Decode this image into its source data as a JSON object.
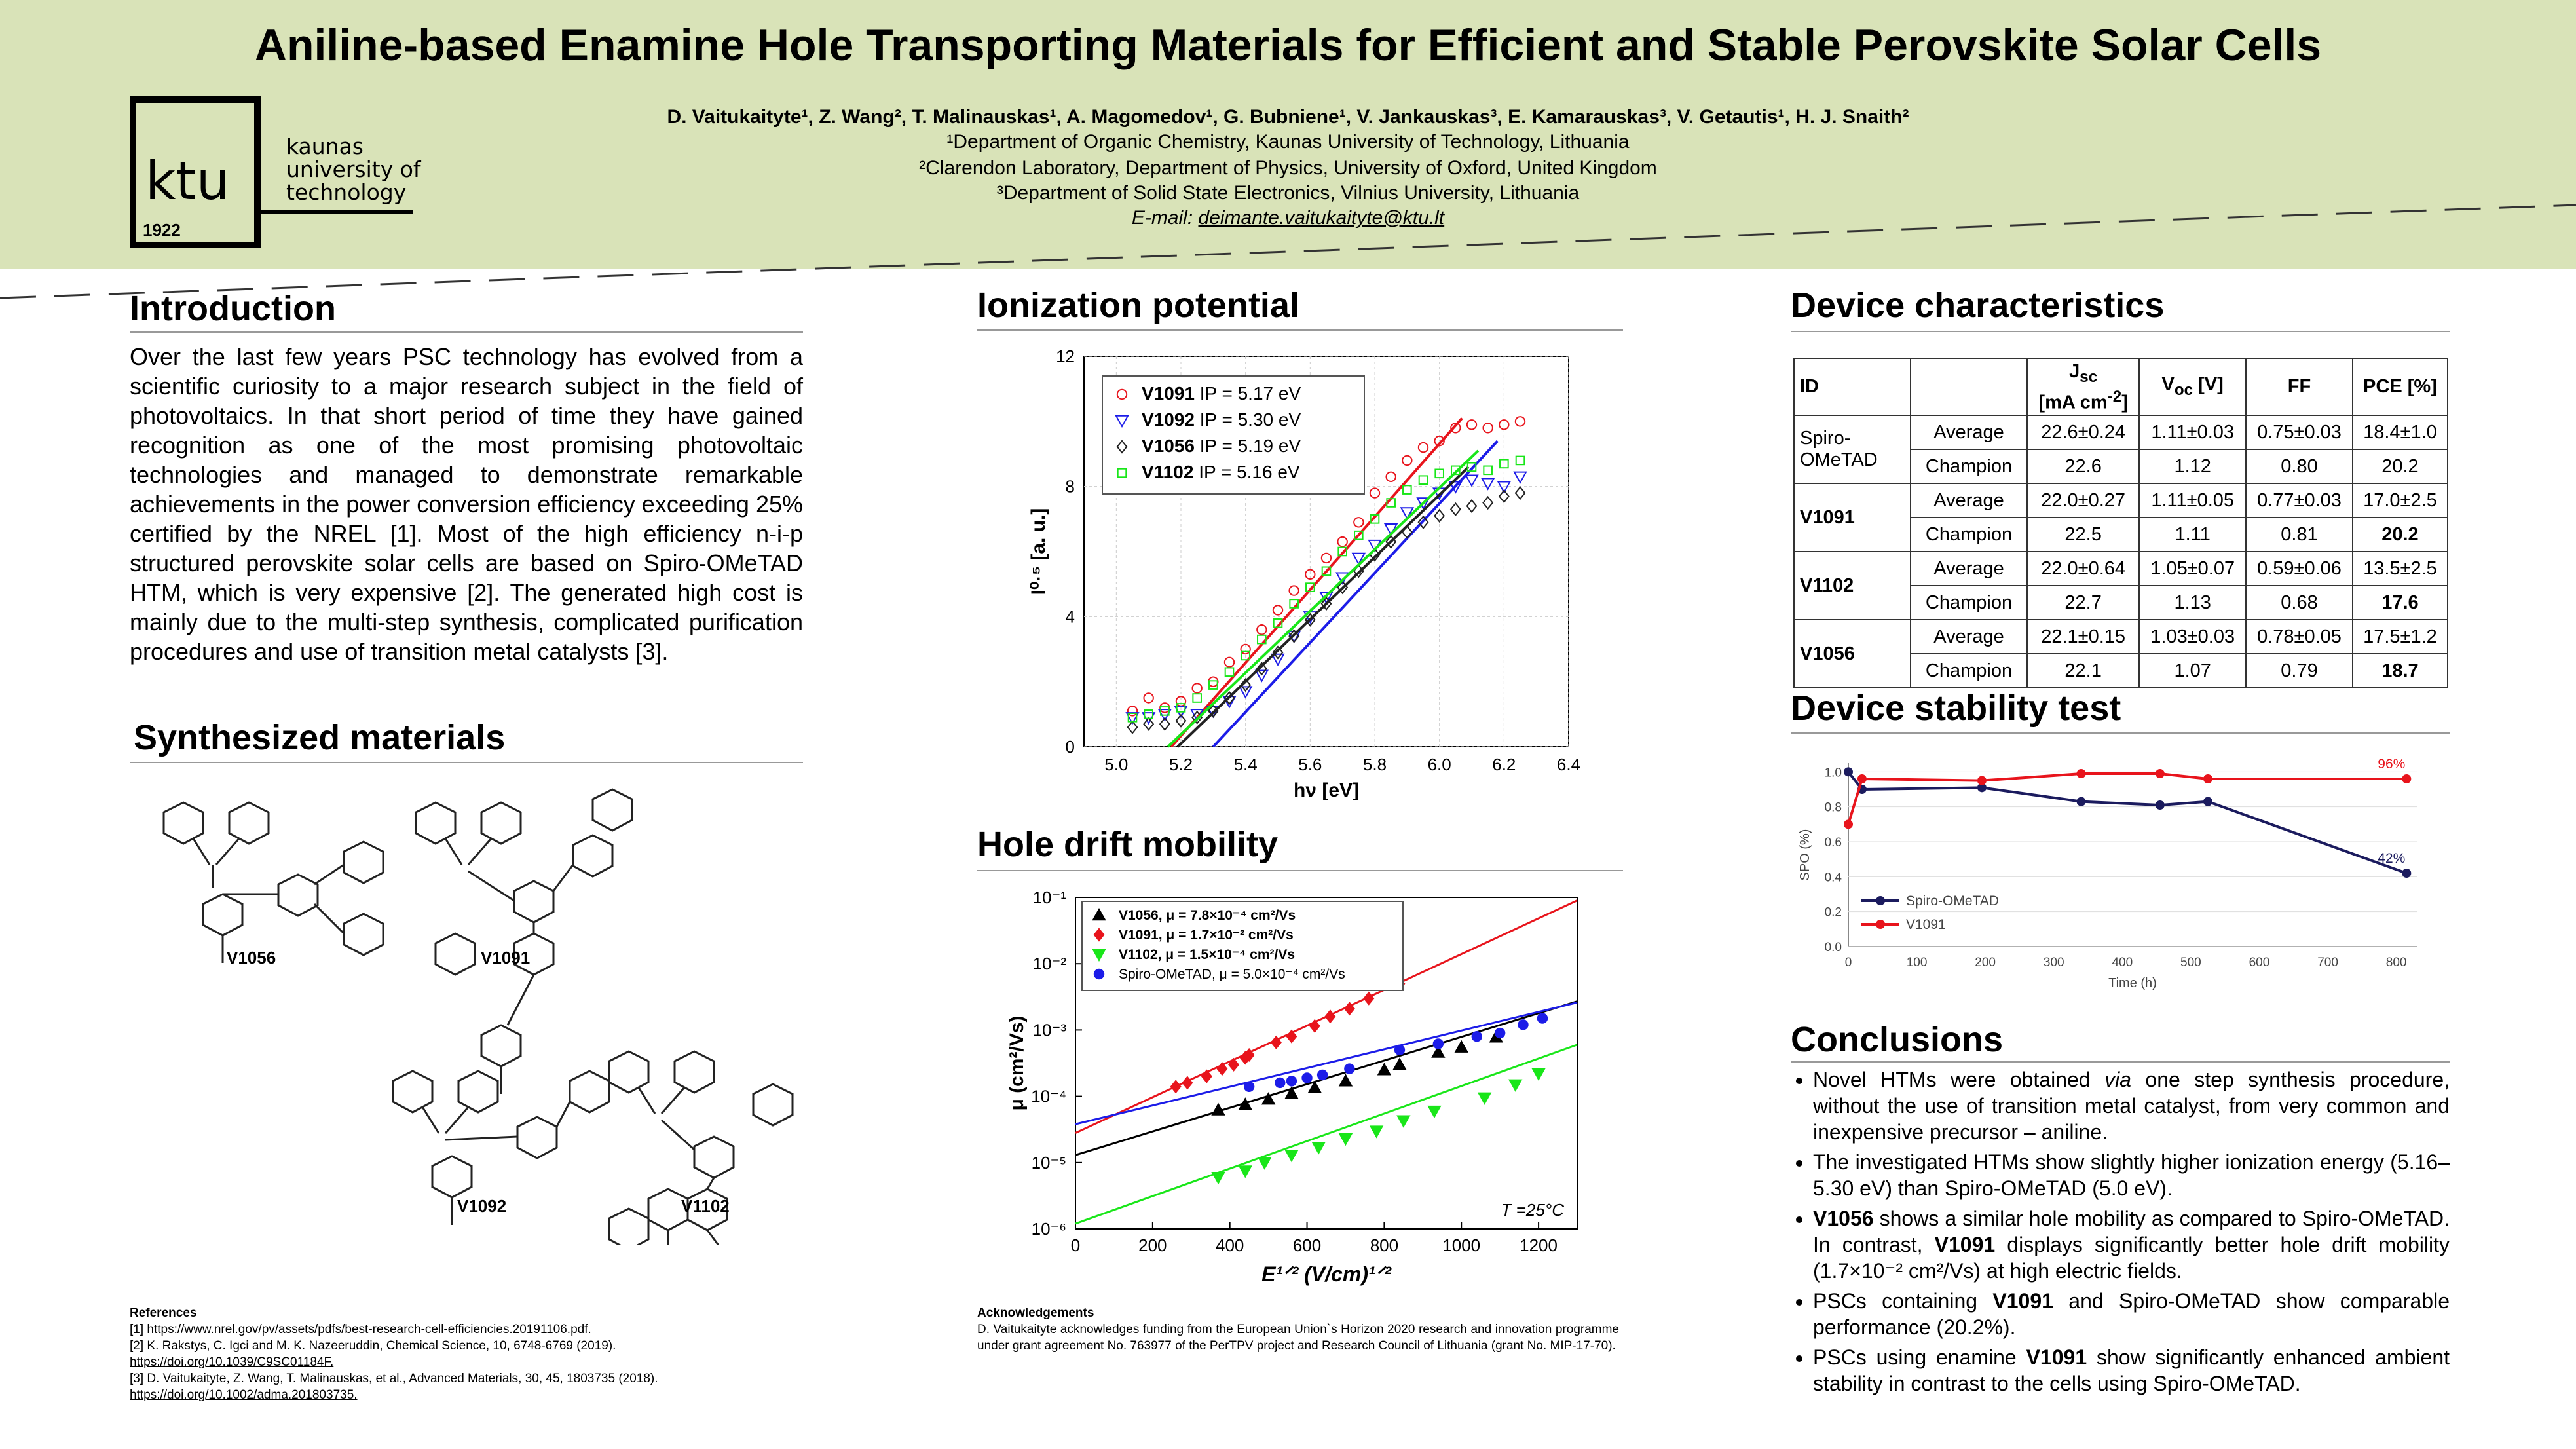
{
  "title": "Aniline-based Enamine Hole Transporting Materials for Efficient and Stable Perovskite Solar Cells",
  "authors": "D. Vaitukaityte¹, Z. Wang², T. Malinauskas¹, A. Magomedov¹, G. Bubniene¹, V. Jankauskas³, E. Kamarauskas³, V. Getautis¹, H. J. Snaith²",
  "affiliations": [
    "¹Department of Organic Chemistry, Kaunas University of Technology, Lithuania",
    "²Clarendon Laboratory, Department of Physics, University of Oxford, United Kingdom",
    "³Department of Solid State Electronics, Vilnius University, Lithuania"
  ],
  "email_label": "E-mail: ",
  "email": "deimante.vaitukaityte@ktu.lt",
  "logo": {
    "short": "ktu",
    "year": "1922",
    "line1": "kaunas",
    "line2": "university of",
    "line3": "technology"
  },
  "introduction": {
    "heading": "Introduction",
    "text": "Over the last few years PSC technology has evolved from a scientific curiosity to a major research subject in the field of photovoltaics. In that short period of time they have gained recognition as one of the most promising photovoltaic technologies and managed to demonstrate remarkable achievements in the power conversion efficiency exceeding 25% certified by the NREL [1]. Most of the high efficiency n-i-p structured perovskite solar cells are based on Spiro-OMeTAD HTM, which is very expensive [2]. The generated high cost is mainly due to the multi-step synthesis, complicated purification procedures and use of transition metal catalysts [3]."
  },
  "synthesized": {
    "heading": "Synthesized materials",
    "labels": [
      "V1056",
      "V1091",
      "V1092",
      "V1102"
    ]
  },
  "references": {
    "heading": "References",
    "items": [
      "[1] https://www.nrel.gov/pv/assets/pdfs/best-research-cell-efficiencies.20191106.pdf.",
      "[2] K. Rakstys, C. Igci and M. K. Nazeeruddin, Chemical Science, 10, 6748-6769 (2019).",
      "https://doi.org/10.1039/C9SC01184F.",
      "[3] D. Vaitukaityte, Z. Wang, T. Malinauskas, et al., Advanced Materials, 30, 45, 1803735 (2018).",
      "https://doi.org/10.1002/adma.201803735."
    ]
  },
  "acknowledgements": {
    "heading": "Acknowledgements",
    "text": "D. Vaitukaityte acknowledges funding from the European Union`s Horizon 2020 research and innovation programme under grant agreement No. 763977 of the PerTPV project and Research Council of Lithuania (grant No. MIP-17-70)."
  },
  "ionization": {
    "heading": "Ionization potential"
  },
  "mobility": {
    "heading": "Hole drift mobility"
  },
  "device": {
    "heading": "Device characteristics",
    "header": [
      "ID",
      "",
      "J_sc [mA cm⁻²]",
      "V_oc [V]",
      "FF",
      "PCE [%]"
    ],
    "groups": [
      {
        "id": "Spiro-OMeTAD",
        "rows": [
          [
            "Average",
            "22.6±0.24",
            "1.11±0.03",
            "0.75±0.03",
            "18.4±1.0"
          ],
          [
            "Champion",
            "22.6",
            "1.12",
            "0.80",
            "20.2"
          ]
        ]
      },
      {
        "id": "V1091",
        "rows": [
          [
            "Average",
            "22.0±0.27",
            "1.11±0.05",
            "0.77±0.03",
            "17.0±2.5"
          ],
          [
            "Champion",
            "22.5",
            "1.11",
            "0.81",
            "20.2"
          ]
        ]
      },
      {
        "id": "V1102",
        "rows": [
          [
            "Average",
            "22.0±0.64",
            "1.05±0.07",
            "0.59±0.06",
            "13.5±2.5"
          ],
          [
            "Champion",
            "22.7",
            "1.13",
            "0.68",
            "17.6"
          ]
        ]
      },
      {
        "id": "V1056",
        "rows": [
          [
            "Average",
            "22.1±0.15",
            "1.03±0.03",
            "0.78±0.05",
            "17.5±1.2"
          ],
          [
            "Champion",
            "22.1",
            "1.07",
            "0.79",
            "18.7"
          ]
        ]
      }
    ]
  },
  "stability": {
    "heading": "Device stability test"
  },
  "conclusions": {
    "heading": "Conclusions",
    "items": [
      [
        "Novel HTMs were obtained ",
        "via",
        " one step synthesis procedure, without the use of transition metal catalyst, from very common and inexpensive precursor – aniline."
      ],
      [
        "The investigated HTMs show slightly higher ionization energy (5.16–5.30 eV) than Spiro-OMeTAD (5.0 eV)."
      ],
      [
        "V1056",
        " shows a similar hole mobility as compared to Spiro-OMeTAD. In contrast, ",
        "V1091",
        " displays significantly better hole drift mobility (1.7×10⁻² cm²/Vs) at high electric fields."
      ],
      [
        "PSCs containing ",
        "V1091",
        " and Spiro-OMeTAD show comparable performance (20.2%)."
      ],
      [
        "PSCs using enamine ",
        "V1091",
        " show significantly enhanced ambient stability in contrast to the cells using Spiro-OMeTAD."
      ]
    ]
  },
  "chart_data": [
    {
      "type": "scatter",
      "xlabel": "hν [eV]",
      "ylabel": "I⁰·⁵ [a. u.]",
      "xlim": [
        4.9,
        6.4
      ],
      "ylim": [
        0,
        12
      ],
      "xticks": [
        "5.0",
        "5.2",
        "5.4",
        "5.6",
        "5.8",
        "6.0",
        "6.2",
        "6.4"
      ],
      "yticks": [
        "0",
        "4",
        "8",
        "12"
      ],
      "legend_position": "top-left",
      "series": [
        {
          "name": "V1091",
          "label": "IP = 5.17 eV",
          "color": "#e8141c",
          "marker": "circle",
          "ip": 5.17,
          "fit_end": [
            6.07,
            10.1
          ],
          "x": [
            5.05,
            5.1,
            5.15,
            5.2,
            5.25,
            5.3,
            5.35,
            5.4,
            5.45,
            5.5,
            5.55,
            5.6,
            5.65,
            5.7,
            5.75,
            5.8,
            5.85,
            5.9,
            5.95,
            6.0,
            6.05,
            6.1,
            6.15,
            6.2,
            6.25
          ],
          "y": [
            1.1,
            1.5,
            1.2,
            1.4,
            1.8,
            2.0,
            2.6,
            3.0,
            3.6,
            4.2,
            4.8,
            5.3,
            5.8,
            6.3,
            6.9,
            7.8,
            8.3,
            8.8,
            9.2,
            9.4,
            9.8,
            9.9,
            9.8,
            9.9,
            10.0
          ]
        },
        {
          "name": "V1092",
          "label": "IP = 5.30 eV",
          "color": "#1c1ce8",
          "marker": "triangle-down",
          "ip": 5.3,
          "fit_end": [
            6.18,
            9.4
          ],
          "x": [
            5.05,
            5.1,
            5.15,
            5.2,
            5.25,
            5.3,
            5.35,
            5.4,
            5.45,
            5.5,
            5.55,
            5.6,
            5.65,
            5.7,
            5.75,
            5.8,
            5.85,
            5.9,
            5.95,
            6.0,
            6.05,
            6.1,
            6.15,
            6.2,
            6.25
          ],
          "y": [
            0.9,
            0.9,
            1.0,
            1.1,
            1.0,
            1.1,
            1.4,
            1.7,
            2.2,
            2.7,
            3.4,
            4.0,
            4.6,
            5.2,
            5.8,
            6.2,
            6.7,
            7.2,
            7.5,
            7.8,
            8.0,
            8.2,
            8.1,
            8.0,
            8.3
          ]
        },
        {
          "name": "V1056",
          "label": "IP = 5.19 eV",
          "color": "#222222",
          "marker": "diamond",
          "ip": 5.19,
          "fit_end": [
            6.09,
            8.6
          ],
          "x": [
            5.05,
            5.1,
            5.15,
            5.2,
            5.25,
            5.3,
            5.35,
            5.4,
            5.45,
            5.5,
            5.55,
            5.6,
            5.65,
            5.7,
            5.75,
            5.8,
            5.85,
            5.9,
            5.95,
            6.0,
            6.05,
            6.1,
            6.15,
            6.2,
            6.25
          ],
          "y": [
            0.6,
            0.7,
            0.7,
            0.8,
            0.9,
            1.1,
            1.5,
            1.9,
            2.4,
            2.9,
            3.4,
            3.9,
            4.4,
            4.9,
            5.4,
            5.9,
            6.3,
            6.6,
            6.9,
            7.1,
            7.3,
            7.4,
            7.5,
            7.7,
            7.8
          ]
        },
        {
          "name": "V1102",
          "label": "IP = 5.16 eV",
          "color": "#19e619",
          "marker": "square",
          "ip": 5.16,
          "fit_end": [
            6.12,
            9.1
          ],
          "x": [
            5.05,
            5.1,
            5.15,
            5.2,
            5.25,
            5.3,
            5.35,
            5.4,
            5.45,
            5.5,
            5.55,
            5.6,
            5.65,
            5.7,
            5.75,
            5.8,
            5.85,
            5.9,
            5.95,
            6.0,
            6.05,
            6.1,
            6.15,
            6.2,
            6.25
          ],
          "y": [
            0.9,
            1.0,
            1.1,
            1.2,
            1.5,
            1.9,
            2.3,
            2.8,
            3.3,
            3.8,
            4.4,
            4.9,
            5.4,
            6.0,
            6.5,
            7.0,
            7.5,
            7.9,
            8.2,
            8.4,
            8.5,
            8.6,
            8.5,
            8.7,
            8.8
          ]
        }
      ]
    },
    {
      "type": "scatter",
      "xlabel": "E¹ᐟ² (V/cm)¹ᐟ²",
      "ylabel": "μ (cm²/Vs)",
      "xlim": [
        0,
        1300
      ],
      "ylim": [
        1e-06,
        0.1
      ],
      "yscale": "log",
      "xticks": [
        "0",
        "200",
        "400",
        "600",
        "800",
        "1000",
        "1200"
      ],
      "yticks": [
        "10⁻⁶",
        "10⁻⁵",
        "10⁻⁴",
        "10⁻³",
        "10⁻²",
        "10⁻¹"
      ],
      "annotation": "T =25°C",
      "legend_position": "top-left",
      "series": [
        {
          "name": "V1056",
          "label": "V1056, μ = 7.8×10⁻⁴ cm²/Vs",
          "color": "#000000",
          "marker": "triangle-up",
          "fit": [
            [
              0,
              1.3e-05
            ],
            [
              1300,
              0.0027
            ]
          ],
          "x": [
            370,
            440,
            500,
            560,
            620,
            700,
            800,
            840,
            940,
            1000,
            1090
          ],
          "y": [
            6.2e-05,
            7.5e-05,
            9e-05,
            0.00011,
            0.000135,
            0.00017,
            0.00025,
            0.0003,
            0.00046,
            0.00055,
            0.00078
          ]
        },
        {
          "name": "V1091",
          "label": "V1091, μ = 1.7×10⁻² cm²/Vs",
          "color": "#e8141c",
          "marker": "diamond",
          "fit": [
            [
              0,
              2.8e-05
            ],
            [
              1300,
              0.09
            ]
          ],
          "x": [
            260,
            290,
            340,
            380,
            410,
            440,
            450,
            520,
            560,
            620,
            660,
            710,
            760,
            840
          ],
          "y": [
            0.00014,
            0.00016,
            0.0002,
            0.00026,
            0.0003,
            0.00038,
            0.00042,
            0.00065,
            0.0008,
            0.00115,
            0.0016,
            0.0021,
            0.003,
            0.005
          ]
        },
        {
          "name": "V1102",
          "label": "V1102, μ = 1.5×10⁻⁴ cm²/Vs",
          "color": "#19e619",
          "marker": "triangle-down",
          "fit": [
            [
              0,
              1.2e-06
            ],
            [
              1300,
              0.0006
            ]
          ],
          "x": [
            370,
            440,
            490,
            560,
            630,
            700,
            780,
            850,
            930,
            1060,
            1140,
            1200
          ],
          "y": [
            6e-06,
            7.5e-06,
            1e-05,
            1.3e-05,
            1.7e-05,
            2.3e-05,
            3e-05,
            4.3e-05,
            6e-05,
            9.5e-05,
            0.00015,
            0.00022
          ]
        },
        {
          "name": "Spiro-OMeTAD",
          "label": "Spiro-OMeTAD, μ = 5.0×10⁻⁴ cm²/Vs",
          "color": "#1c1ce8",
          "marker": "circle",
          "fit": [
            [
              0,
              3.8e-05
            ],
            [
              1300,
              0.0026
            ]
          ],
          "x": [
            450,
            530,
            560,
            600,
            640,
            710,
            840,
            940,
            1040,
            1100,
            1160,
            1210
          ],
          "y": [
            0.00014,
            0.00016,
            0.00017,
            0.00019,
            0.00021,
            0.00026,
            0.0005,
            0.00062,
            0.0008,
            0.0009,
            0.0012,
            0.0015
          ]
        }
      ]
    },
    {
      "type": "line",
      "xlabel": "Time (h)",
      "ylabel": "SPO (%)",
      "xlim": [
        0,
        830
      ],
      "ylim": [
        0,
        1.05
      ],
      "xticks": [
        "0",
        "100",
        "200",
        "300",
        "400",
        "500",
        "600",
        "700",
        "800"
      ],
      "yticks": [
        "0.0",
        "0.2",
        "0.4",
        "0.6",
        "0.8",
        "1.0"
      ],
      "legend_position": "bottom-left",
      "series": [
        {
          "name": "Spiro-OMeTAD",
          "color": "#1b1b5e",
          "x": [
            0,
            20,
            195,
            340,
            455,
            525,
            815
          ],
          "y": [
            1.0,
            0.9,
            0.91,
            0.83,
            0.81,
            0.83,
            0.42
          ],
          "end_label": "42%"
        },
        {
          "name": "V1091",
          "color": "#e8141c",
          "x": [
            0,
            20,
            195,
            340,
            455,
            525,
            815
          ],
          "y": [
            0.7,
            0.96,
            0.95,
            0.99,
            0.99,
            0.96,
            0.96
          ],
          "end_label": "96%"
        }
      ]
    }
  ]
}
